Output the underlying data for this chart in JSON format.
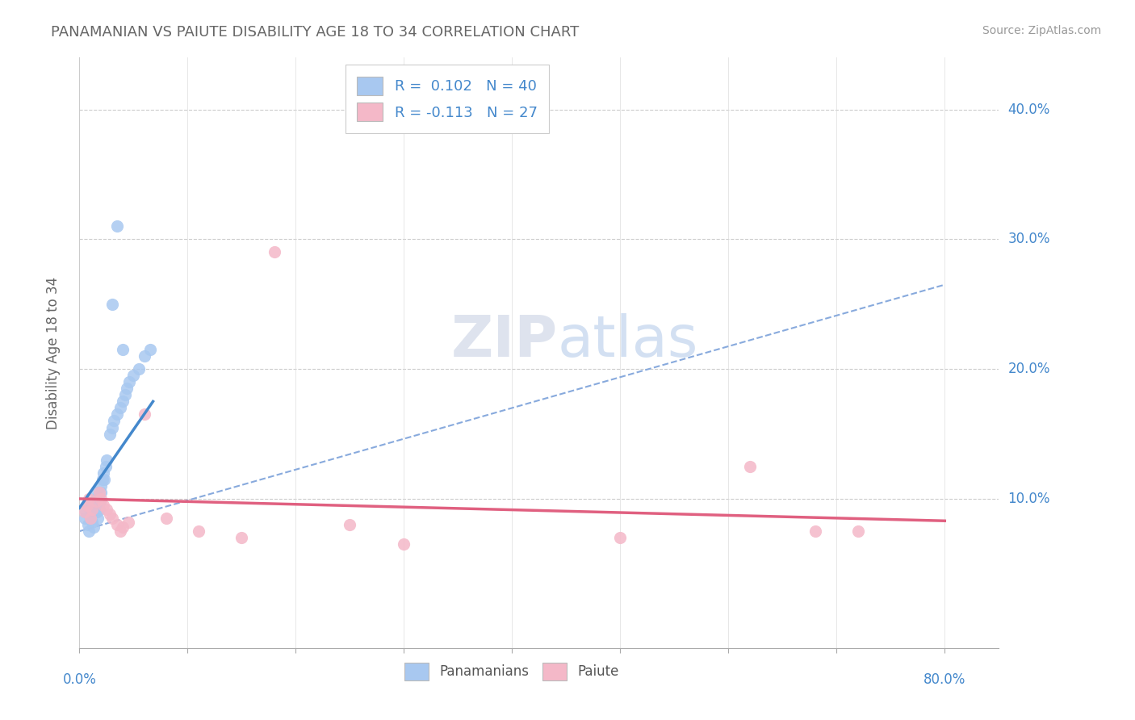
{
  "title": "PANAMANIAN VS PAIUTE DISABILITY AGE 18 TO 34 CORRELATION CHART",
  "source": "Source: ZipAtlas.com",
  "ylabel": "Disability Age 18 to 34",
  "xlim": [
    0.0,
    0.85
  ],
  "ylim": [
    -0.015,
    0.44
  ],
  "R_blue": 0.102,
  "N_blue": 40,
  "R_pink": -0.113,
  "N_pink": 27,
  "blue_color": "#a8c8f0",
  "pink_color": "#f4b8c8",
  "blue_line_color": "#4488cc",
  "pink_line_color": "#e06080",
  "dashed_line_color": "#88aadd",
  "legend_label_blue": "Panamanians",
  "legend_label_pink": "Paiute",
  "yticks": [
    0.1,
    0.2,
    0.3,
    0.4
  ],
  "ytick_labels": [
    "10.0%",
    "20.0%",
    "30.0%",
    "40.0%"
  ],
  "blue_x": [
    0.005,
    0.006,
    0.007,
    0.008,
    0.009,
    0.01,
    0.01,
    0.011,
    0.012,
    0.013,
    0.014,
    0.015,
    0.015,
    0.016,
    0.017,
    0.018,
    0.019,
    0.02,
    0.02,
    0.021,
    0.022,
    0.023,
    0.024,
    0.025,
    0.028,
    0.03,
    0.032,
    0.035,
    0.038,
    0.04,
    0.042,
    0.044,
    0.046,
    0.05,
    0.055,
    0.06,
    0.065,
    0.03,
    0.035,
    0.04
  ],
  "blue_y": [
    0.085,
    0.09,
    0.095,
    0.08,
    0.075,
    0.085,
    0.092,
    0.088,
    0.082,
    0.078,
    0.095,
    0.1,
    0.105,
    0.09,
    0.085,
    0.092,
    0.098,
    0.11,
    0.105,
    0.115,
    0.12,
    0.115,
    0.125,
    0.13,
    0.15,
    0.155,
    0.16,
    0.165,
    0.17,
    0.175,
    0.18,
    0.185,
    0.19,
    0.195,
    0.2,
    0.21,
    0.215,
    0.25,
    0.31,
    0.215
  ],
  "pink_x": [
    0.005,
    0.007,
    0.009,
    0.01,
    0.012,
    0.015,
    0.018,
    0.02,
    0.022,
    0.025,
    0.028,
    0.03,
    0.035,
    0.038,
    0.04,
    0.045,
    0.06,
    0.08,
    0.11,
    0.15,
    0.18,
    0.25,
    0.3,
    0.5,
    0.62,
    0.68,
    0.72
  ],
  "pink_y": [
    0.09,
    0.095,
    0.1,
    0.085,
    0.092,
    0.098,
    0.105,
    0.1,
    0.095,
    0.092,
    0.088,
    0.085,
    0.08,
    0.075,
    0.078,
    0.082,
    0.165,
    0.085,
    0.075,
    0.07,
    0.29,
    0.08,
    0.065,
    0.07,
    0.125,
    0.075,
    0.075
  ],
  "blue_line_x": [
    0.0,
    0.068
  ],
  "blue_line_y": [
    0.093,
    0.175
  ],
  "pink_line_x": [
    0.0,
    0.8
  ],
  "pink_line_y": [
    0.1,
    0.083
  ],
  "dashed_line_x": [
    0.0,
    0.8
  ],
  "dashed_line_y": [
    0.075,
    0.265
  ]
}
